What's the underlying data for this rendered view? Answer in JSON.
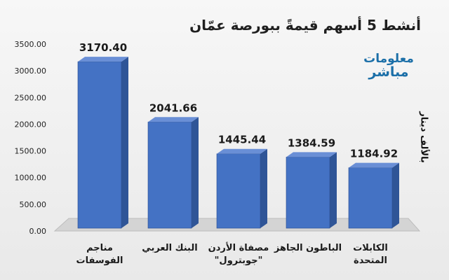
{
  "header": {
    "title": "أنشط 5 أسهم قيمةً ببورصة عمّان",
    "logo_line1": "معلومات",
    "logo_line2": "مباشر",
    "unit_label": "بالألف دينار"
  },
  "colors": {
    "bar_front": "#4472c4",
    "bar_side": "#2f5597",
    "bar_top": "#6a8fd6",
    "floor": "#d4d4d4",
    "axis_text": "#222222",
    "label_text": "#1a1a1a"
  },
  "chart_data": {
    "type": "bar",
    "style": "3d-column",
    "title": "أنشط 5 أسهم قيمةً ببورصة عمّان",
    "ylabel": "بالألف دينار",
    "xlabel": "",
    "ylim": [
      0,
      3500
    ],
    "yticks": [
      "0.00",
      "500.00",
      "1000.00",
      "1500.00",
      "2000.00",
      "2500.00",
      "3000.00",
      "3500.00"
    ],
    "grid": false,
    "legend": "none",
    "categories": [
      [
        "مناجم",
        "الفوسفات"
      ],
      [
        "البنك العربي"
      ],
      [
        "مصفاة الأردن",
        "\"جوبترول\""
      ],
      [
        "الباطون الجاهز"
      ],
      [
        "الكابلات",
        "المتحدة"
      ]
    ],
    "values": [
      3170.4,
      2041.66,
      1445.44,
      1384.59,
      1184.92
    ],
    "value_labels": [
      "3170.40",
      "2041.66",
      "1445.44",
      "1384.59",
      "1184.92"
    ]
  }
}
